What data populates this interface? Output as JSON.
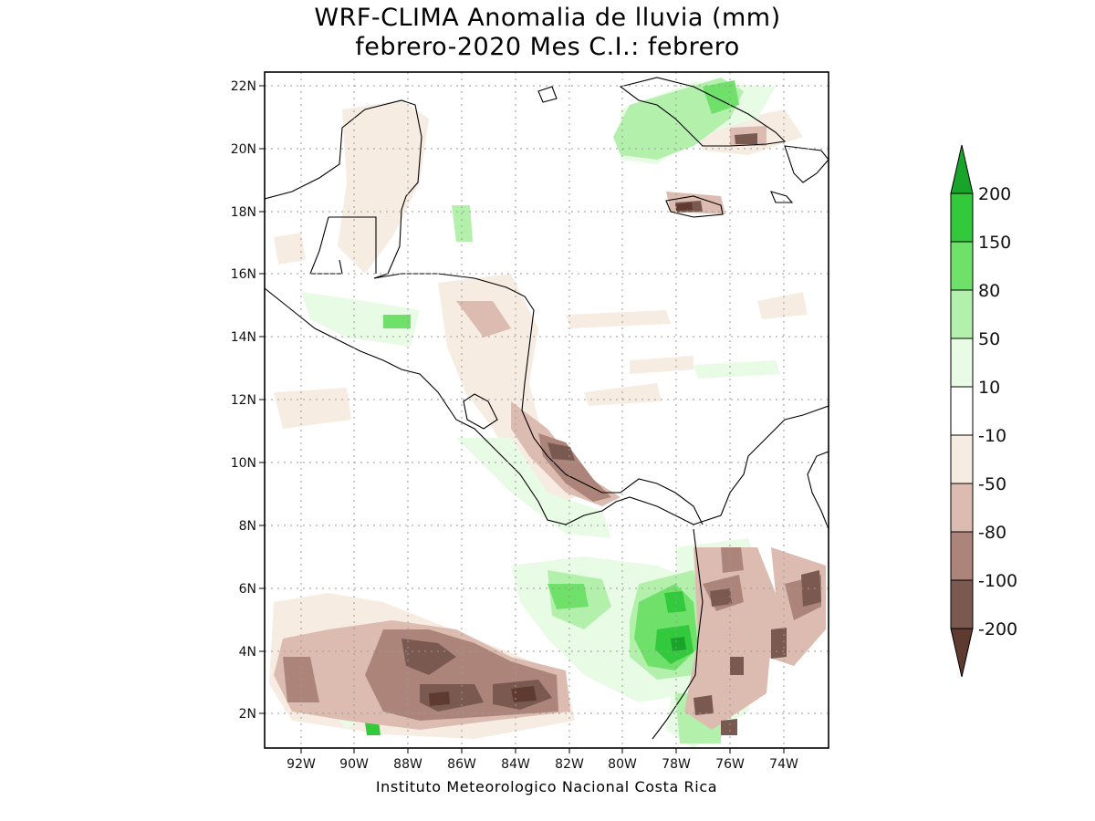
{
  "title_line1": "WRF-CLIMA Anomalia de lluvia (mm)",
  "title_line2": "febrero-2020 Mes C.I.: febrero",
  "credit": "Instituto Meteorologico Nacional Costa Rica",
  "lat_ticks": [
    "22N",
    "20N",
    "18N",
    "16N",
    "14N",
    "12N",
    "10N",
    "8N",
    "6N",
    "4N",
    "2N"
  ],
  "lon_ticks": [
    "92W",
    "90W",
    "88W",
    "86W",
    "84W",
    "82W",
    "80W",
    "78W",
    "76W",
    "74W"
  ],
  "colorbar": {
    "labels": [
      "200",
      "150",
      "80",
      "50",
      "10",
      "-10",
      "-50",
      "-80",
      "-100",
      "-200"
    ],
    "colors": {
      "gt200": "#18a32a",
      "150_200": "#33c93c",
      "80_150": "#6fe06a",
      "50_80": "#b2f0ac",
      "10_50": "#e8fbe4",
      "neutral": "#ffffff",
      "m50_m10": "#f6ece2",
      "m80_m50": "#dcbcb0",
      "m100_m80": "#ac847a",
      "m200_m100": "#7a5a50",
      "lt_m200": "#5e3a30"
    }
  }
}
